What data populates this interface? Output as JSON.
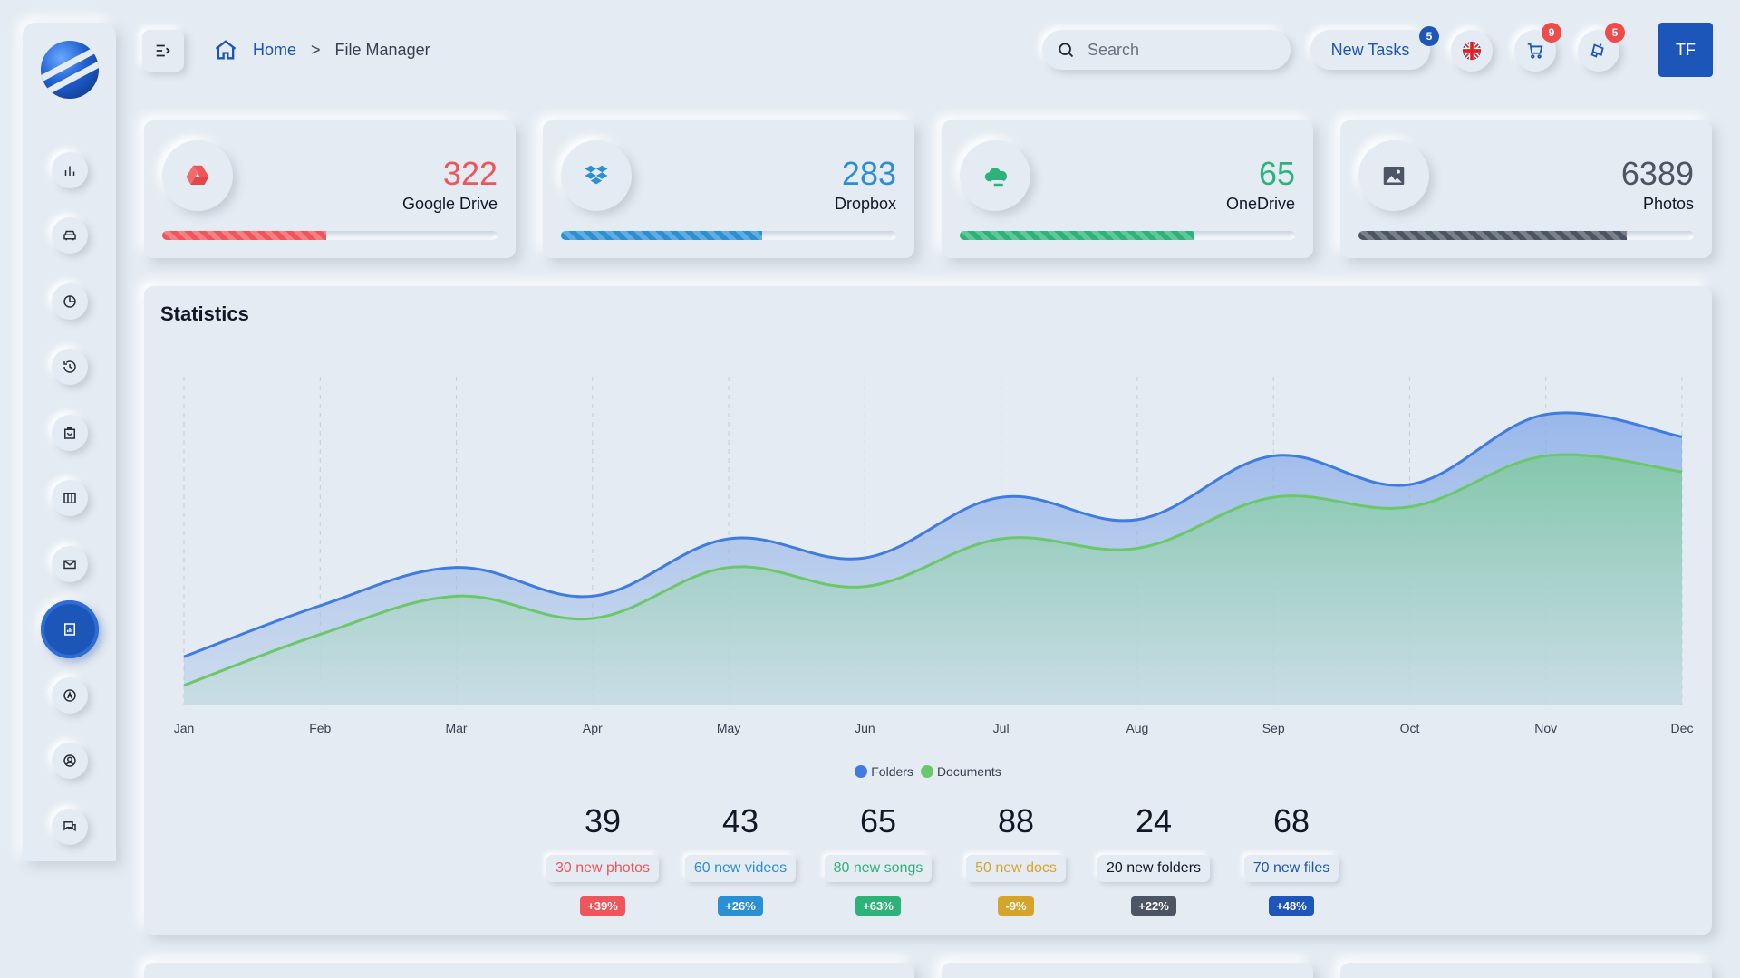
{
  "header": {
    "breadcrumb": {
      "home": "Home",
      "separator": ">",
      "current": "File Manager"
    },
    "search": {
      "placeholder": "Search",
      "value": ""
    },
    "new_tasks": {
      "label": "New Tasks",
      "badge": "5"
    },
    "cart_badge": "9",
    "notifications_badge": "5",
    "avatar_initials": "TF",
    "icons": [
      "menu-toggle-icon",
      "home-icon",
      "search-icon",
      "uk-flag-icon",
      "cart-icon",
      "bell-icon"
    ]
  },
  "sidebar": {
    "items": [
      {
        "name": "analytics",
        "icon": "bar-chart-icon"
      },
      {
        "name": "vehicles",
        "icon": "car-icon"
      },
      {
        "name": "reports",
        "icon": "pie-chart-icon"
      },
      {
        "name": "history",
        "icon": "history-icon"
      },
      {
        "name": "shop",
        "icon": "shopping-bag-icon"
      },
      {
        "name": "kanban",
        "icon": "columns-icon"
      },
      {
        "name": "mail",
        "icon": "mail-icon"
      },
      {
        "name": "file-manager",
        "icon": "file-chart-icon",
        "active": true
      },
      {
        "name": "crypto",
        "icon": "crypto-icon"
      },
      {
        "name": "profile",
        "icon": "user-circle-icon"
      },
      {
        "name": "chat",
        "icon": "chat-icon"
      }
    ]
  },
  "cards": [
    {
      "value": "322",
      "label": "Google Drive",
      "color": "#f0555b",
      "progress": 0.49,
      "icon": "google-drive-icon"
    },
    {
      "value": "283",
      "label": "Dropbox",
      "color": "#2b8fd6",
      "progress": 0.6,
      "icon": "dropbox-icon"
    },
    {
      "value": "65",
      "label": "OneDrive",
      "color": "#2db37a",
      "progress": 0.7,
      "icon": "onedrive-icon"
    },
    {
      "value": "6389",
      "label": "Photos",
      "color": "#4b5563",
      "progress": 0.8,
      "icon": "image-icon"
    }
  ],
  "statistics": {
    "title": "Statistics",
    "legend": [
      {
        "name": "Folders",
        "color": "#3f7be0"
      },
      {
        "name": "Documents",
        "color": "#6cc76a"
      }
    ],
    "summary": [
      {
        "value": "39",
        "label": "30 new photos",
        "change": "+39%",
        "color": "#f0555b"
      },
      {
        "value": "43",
        "label": "60 new videos",
        "change": "+26%",
        "color": "#2b8fd6"
      },
      {
        "value": "65",
        "label": "80 new songs",
        "change": "+63%",
        "color": "#2db37a"
      },
      {
        "value": "88",
        "label": "50 new docs",
        "change": "-9%",
        "color": "#d5a52a"
      },
      {
        "value": "24",
        "label": "20 new folders",
        "change": "+22%",
        "color": "#4b5563"
      },
      {
        "value": "68",
        "label": "70 new files",
        "change": "+48%",
        "color": "#1c56b8"
      }
    ]
  },
  "chart_data": {
    "type": "area",
    "categories": [
      "Jan",
      "Feb",
      "Mar",
      "Apr",
      "May",
      "Jun",
      "Jul",
      "Aug",
      "Sep",
      "Oct",
      "Nov",
      "Dec"
    ],
    "series": [
      {
        "name": "Folders",
        "values": [
          15,
          31,
          43,
          34,
          52,
          46,
          65,
          58,
          78,
          69,
          91,
          84
        ],
        "color": "#3f7be0"
      },
      {
        "name": "Documents",
        "values": [
          6,
          22,
          34,
          27,
          43,
          37,
          52,
          49,
          65,
          62,
          78,
          73
        ],
        "color": "#6cc76a"
      }
    ],
    "ylim": [
      0,
      100
    ],
    "grid": "vertical-dashed",
    "legend": "bottom"
  }
}
